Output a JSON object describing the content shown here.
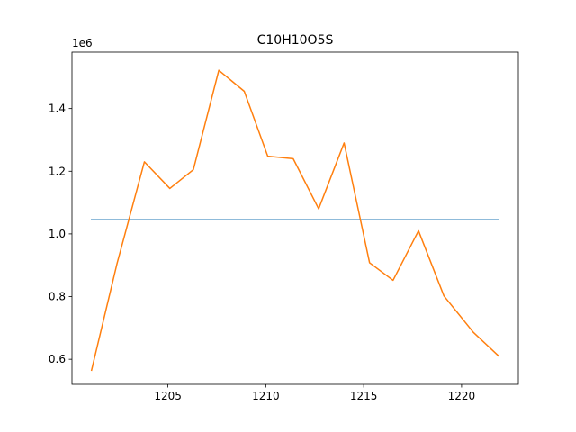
{
  "chart_data": {
    "type": "line",
    "title": "C10H10O5S",
    "xlabel": "",
    "ylabel": "",
    "y_offset_label": "1e6",
    "y_multiplier": 1000000,
    "xlim": [
      1200.1,
      1222.9
    ],
    "ylim": [
      520000,
      1580000
    ],
    "x_ticks": [
      1205,
      1210,
      1215,
      1220
    ],
    "y_ticks": [
      600000,
      800000,
      1000000,
      1200000,
      1400000
    ],
    "y_tick_labels": [
      "0.6",
      "0.8",
      "1.0",
      "1.2",
      "1.4"
    ],
    "grid": false,
    "legend": "none",
    "series": [
      {
        "color": "#1f77b4",
        "x": [
          1201.1,
          1221.9
        ],
        "y": [
          1045000,
          1045000
        ]
      },
      {
        "color": "#ff7f0e",
        "x": [
          1201.1,
          1202.4,
          1203.8,
          1205.1,
          1206.3,
          1207.6,
          1208.9,
          1210.1,
          1211.4,
          1212.7,
          1214.0,
          1215.3,
          1216.5,
          1217.8,
          1219.1,
          1220.6,
          1221.9
        ],
        "y": [
          565000,
          905000,
          1230000,
          1145000,
          1205000,
          1522000,
          1455000,
          1248000,
          1240000,
          1080000,
          1290000,
          908000,
          852000,
          1010000,
          802000,
          686000,
          610000
        ]
      }
    ]
  }
}
